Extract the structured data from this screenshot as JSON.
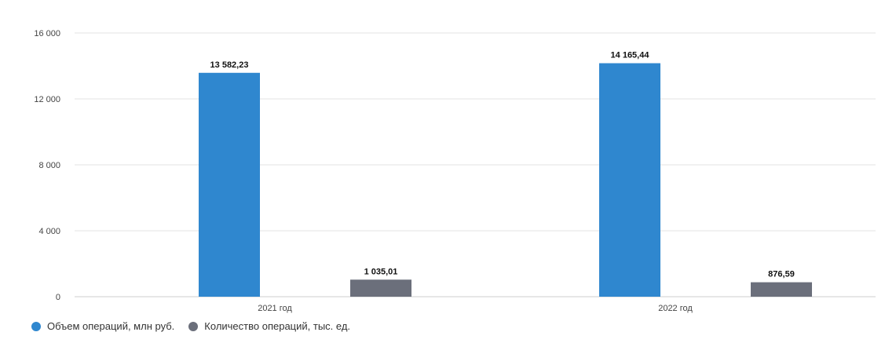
{
  "chart_data": {
    "type": "bar",
    "categories": [
      "2021 год",
      "2022 год"
    ],
    "series": [
      {
        "name": "Объем операций, млн руб.",
        "values": [
          13582.23,
          14165.44
        ],
        "labels": [
          "13 582,23",
          "14 165,44"
        ],
        "color": "#2f87cf"
      },
      {
        "name": "Количество операций, тыс. ед.",
        "values": [
          1035.01,
          876.59
        ],
        "labels": [
          "1 035,01",
          "876,59"
        ],
        "color": "#6b6f7b"
      }
    ],
    "ylim": [
      0,
      16000
    ],
    "yticks": [
      0,
      4000,
      8000,
      12000,
      16000
    ],
    "ytick_labels": [
      "0",
      "4 000",
      "8 000",
      "12 000",
      "16 000"
    ],
    "grid": true,
    "legend_position": "bottom-left"
  }
}
